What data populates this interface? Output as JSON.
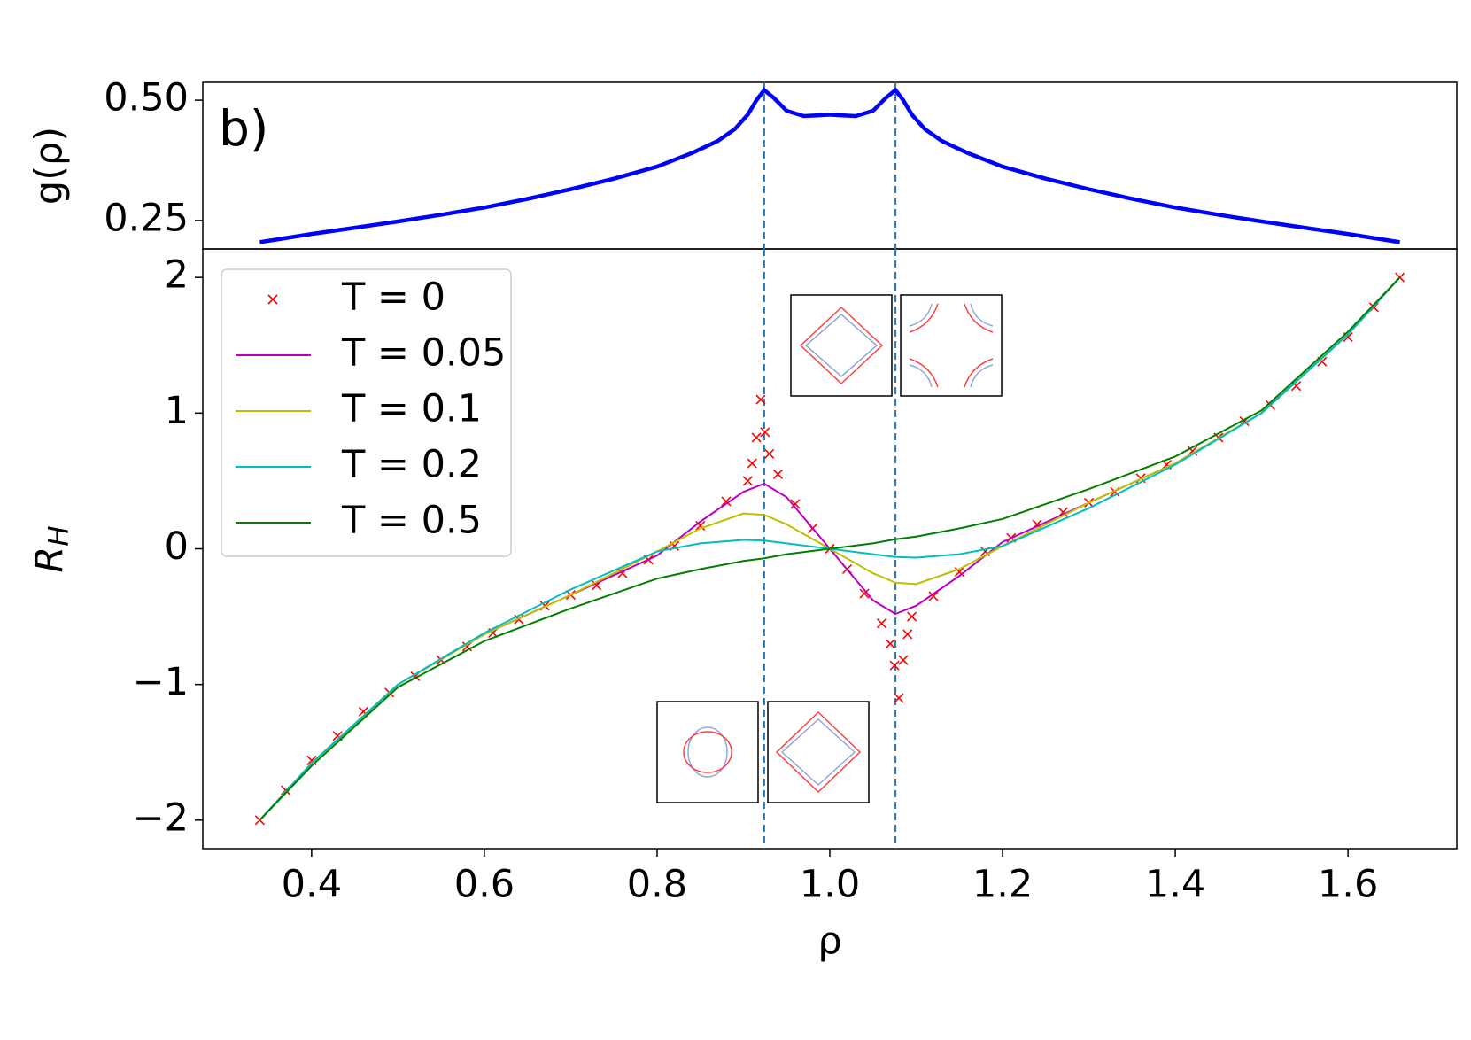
{
  "chart_data": [
    {
      "type": "line",
      "annotation": "b)",
      "ylabel": "g(ρ)",
      "xlim": [
        0.274,
        1.726
      ],
      "ylim": [
        0.191,
        0.537
      ],
      "yticks": [
        0.25,
        {
          "value": 0.5,
          "label": "0.50"
        }
      ],
      "vlines": [
        0.924,
        1.076
      ],
      "vline_color": "#1f77b4",
      "series": [
        {
          "color": "#0000ff",
          "x": [
            0.34,
            0.4,
            0.45,
            0.5,
            0.55,
            0.6,
            0.65,
            0.7,
            0.75,
            0.8,
            0.84,
            0.87,
            0.89,
            0.905,
            0.915,
            0.924,
            0.935,
            0.95,
            0.97,
            0.99,
            1.0,
            1.01,
            1.03,
            1.05,
            1.065,
            1.076,
            1.085,
            1.095,
            1.11,
            1.13,
            1.16,
            1.2,
            1.25,
            1.3,
            1.35,
            1.4,
            1.45,
            1.5,
            1.55,
            1.6,
            1.66
          ],
          "values": [
            0.205,
            0.222,
            0.235,
            0.248,
            0.262,
            0.277,
            0.295,
            0.315,
            0.337,
            0.362,
            0.39,
            0.415,
            0.44,
            0.47,
            0.5,
            0.521,
            0.505,
            0.478,
            0.467,
            0.469,
            0.47,
            0.469,
            0.467,
            0.478,
            0.505,
            0.521,
            0.5,
            0.47,
            0.44,
            0.415,
            0.39,
            0.362,
            0.337,
            0.315,
            0.295,
            0.277,
            0.262,
            0.248,
            0.235,
            0.222,
            0.205
          ]
        }
      ]
    },
    {
      "type": "line",
      "xlabel": "ρ",
      "ylabel": [
        "R",
        "H"
      ],
      "xlim": [
        0.274,
        1.726
      ],
      "ylim": [
        -2.21,
        2.21
      ],
      "xticks": [
        0.4,
        0.6,
        0.8,
        {
          "value": 1,
          "label": "1.0"
        },
        1.2,
        1.4,
        1.6
      ],
      "yticks": [
        {
          "value": -2,
          "label": "−2"
        },
        {
          "value": -1,
          "label": "−1"
        },
        0,
        1,
        2
      ],
      "vlines": [
        0.924,
        1.076
      ],
      "vline_color": "#1f77b4",
      "legend": "upper left",
      "series": [
        {
          "name": "T = 0",
          "color": "#ff0000",
          "marker": "x",
          "x": [
            0.34,
            0.37,
            0.4,
            0.43,
            0.46,
            0.49,
            0.52,
            0.55,
            0.58,
            0.61,
            0.64,
            0.67,
            0.7,
            0.73,
            0.76,
            0.79,
            0.82,
            0.85,
            0.88,
            0.905,
            0.91,
            0.915,
            0.92,
            0.925,
            0.93,
            0.94,
            0.96,
            0.98,
            1.0,
            1.02,
            1.04,
            1.06,
            1.07,
            1.075,
            1.08,
            1.085,
            1.09,
            1.095,
            1.12,
            1.15,
            1.18,
            1.21,
            1.24,
            1.27,
            1.3,
            1.33,
            1.36,
            1.39,
            1.42,
            1.45,
            1.48,
            1.51,
            1.54,
            1.57,
            1.6,
            1.63,
            1.66
          ],
          "values": [
            -2.0,
            -1.78,
            -1.56,
            -1.38,
            -1.2,
            -1.06,
            -0.94,
            -0.82,
            -0.72,
            -0.62,
            -0.52,
            -0.42,
            -0.34,
            -0.27,
            -0.18,
            -0.08,
            0.02,
            0.17,
            0.35,
            0.5,
            0.63,
            0.82,
            1.1,
            0.86,
            0.7,
            0.55,
            0.33,
            0.15,
            0,
            -0.15,
            -0.33,
            -0.55,
            -0.7,
            -0.86,
            -1.1,
            -0.82,
            -0.63,
            -0.5,
            -0.35,
            -0.17,
            -0.02,
            0.08,
            0.18,
            0.27,
            0.34,
            0.42,
            0.52,
            0.62,
            0.72,
            0.82,
            0.94,
            1.06,
            1.2,
            1.38,
            1.56,
            1.78,
            2.0
          ]
        },
        {
          "name": "T = 0.05",
          "color": "#bf00bf",
          "x": [
            0.34,
            0.4,
            0.5,
            0.6,
            0.7,
            0.8,
            0.85,
            0.9,
            0.924,
            0.95,
            1.0,
            1.05,
            1.076,
            1.1,
            1.15,
            1.2,
            1.3,
            1.4,
            1.5,
            1.6,
            1.66
          ],
          "values": [
            -2.0,
            -1.58,
            -1.0,
            -0.63,
            -0.34,
            -0.05,
            0.2,
            0.42,
            0.48,
            0.38,
            0,
            -0.38,
            -0.48,
            -0.42,
            -0.2,
            0.05,
            0.34,
            0.63,
            1.0,
            1.58,
            2.0
          ]
        },
        {
          "name": "T = 0.1",
          "color": "#bfbf00",
          "x": [
            0.34,
            0.4,
            0.5,
            0.6,
            0.7,
            0.8,
            0.85,
            0.9,
            0.924,
            0.95,
            1.0,
            1.05,
            1.076,
            1.1,
            1.15,
            1.2,
            1.3,
            1.4,
            1.5,
            1.6,
            1.66
          ],
          "values": [
            -2.0,
            -1.58,
            -1.0,
            -0.63,
            -0.34,
            -0.02,
            0.15,
            0.26,
            0.25,
            0.18,
            0,
            -0.18,
            -0.25,
            -0.26,
            -0.15,
            0.02,
            0.34,
            0.63,
            1.0,
            1.58,
            2.0
          ]
        },
        {
          "name": "T = 0.2",
          "color": "#00bfbf",
          "x": [
            0.34,
            0.4,
            0.5,
            0.6,
            0.7,
            0.8,
            0.85,
            0.9,
            0.924,
            0.95,
            1.0,
            1.05,
            1.076,
            1.1,
            1.15,
            1.2,
            1.3,
            1.4,
            1.5,
            1.6,
            1.66
          ],
          "values": [
            -2.0,
            -1.58,
            -1.0,
            -0.62,
            -0.3,
            -0.02,
            0.04,
            0.065,
            0.06,
            0.04,
            0,
            -0.04,
            -0.06,
            -0.065,
            -0.04,
            0.02,
            0.3,
            0.62,
            1.0,
            1.58,
            2.0
          ]
        },
        {
          "name": "T = 0.5",
          "color": "#008000",
          "x": [
            0.34,
            0.4,
            0.5,
            0.6,
            0.7,
            0.8,
            0.85,
            0.9,
            0.924,
            0.95,
            1.0,
            1.05,
            1.076,
            1.1,
            1.15,
            1.2,
            1.3,
            1.4,
            1.5,
            1.6,
            1.66
          ],
          "values": [
            -2.0,
            -1.6,
            -1.02,
            -0.68,
            -0.44,
            -0.22,
            -0.15,
            -0.09,
            -0.07,
            -0.04,
            0,
            0.04,
            0.07,
            0.09,
            0.15,
            0.22,
            0.44,
            0.68,
            1.02,
            1.6,
            2.0
          ]
        }
      ]
    }
  ]
}
